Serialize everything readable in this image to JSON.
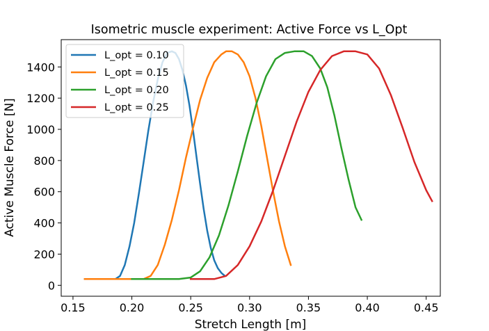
{
  "chart_data": {
    "type": "line",
    "title": "Isometric muscle experiment: Active Force vs L_Opt",
    "xlabel": "Stretch Length [m]",
    "ylabel": "Active Muscle Force [N]",
    "xlim": [
      0.14,
      0.462
    ],
    "ylim": [
      -70,
      1575
    ],
    "xticks": [
      0.15,
      0.2,
      0.25,
      0.3,
      0.35,
      0.4,
      0.45
    ],
    "xtick_labels": [
      "0.15",
      "0.20",
      "0.25",
      "0.30",
      "0.35",
      "0.40",
      "0.45"
    ],
    "yticks": [
      0,
      200,
      400,
      600,
      800,
      1000,
      1200,
      1400
    ],
    "ytick_labels": [
      "0",
      "200",
      "400",
      "600",
      "800",
      "1000",
      "1200",
      "1400"
    ],
    "grid": false,
    "legend_position": "upper-left",
    "series": [
      {
        "name": "L_opt = 0.10",
        "color": "#1f77b4",
        "x": [
          0.16,
          0.17,
          0.18,
          0.186,
          0.19,
          0.194,
          0.198,
          0.202,
          0.206,
          0.21,
          0.214,
          0.218,
          0.222,
          0.226,
          0.23,
          0.234,
          0.237,
          0.24,
          0.243,
          0.246,
          0.249,
          0.252,
          0.255,
          0.258,
          0.261,
          0.264,
          0.267,
          0.27,
          0.273,
          0.276,
          0.279
        ],
        "y": [
          40,
          40,
          40,
          40,
          60,
          130,
          250,
          400,
          590,
          790,
          990,
          1170,
          1320,
          1430,
          1490,
          1500,
          1490,
          1450,
          1380,
          1280,
          1150,
          990,
          820,
          650,
          490,
          350,
          240,
          160,
          110,
          80,
          60
        ]
      },
      {
        "name": "L_opt = 0.15",
        "color": "#ff7f0e",
        "x": [
          0.16,
          0.18,
          0.2,
          0.21,
          0.216,
          0.222,
          0.228,
          0.234,
          0.24,
          0.246,
          0.252,
          0.258,
          0.264,
          0.27,
          0.276,
          0.28,
          0.285,
          0.29,
          0.295,
          0.3,
          0.305,
          0.31,
          0.315,
          0.32,
          0.325,
          0.33,
          0.335
        ],
        "y": [
          40,
          40,
          40,
          40,
          60,
          130,
          260,
          420,
          610,
          820,
          1010,
          1190,
          1330,
          1430,
          1480,
          1500,
          1500,
          1480,
          1430,
          1340,
          1200,
          1020,
          810,
          600,
          410,
          250,
          130
        ]
      },
      {
        "name": "L_opt = 0.20",
        "color": "#2ca02c",
        "x": [
          0.2,
          0.22,
          0.24,
          0.25,
          0.258,
          0.266,
          0.274,
          0.282,
          0.29,
          0.298,
          0.306,
          0.314,
          0.322,
          0.33,
          0.338,
          0.346,
          0.353,
          0.36,
          0.366,
          0.372,
          0.378,
          0.384,
          0.39,
          0.395
        ],
        "y": [
          40,
          40,
          40,
          50,
          90,
          180,
          320,
          510,
          730,
          960,
          1170,
          1340,
          1450,
          1490,
          1500,
          1500,
          1470,
          1390,
          1270,
          1090,
          880,
          680,
          500,
          420
        ]
      },
      {
        "name": "L_opt = 0.25",
        "color": "#d62728",
        "x": [
          0.25,
          0.27,
          0.28,
          0.29,
          0.3,
          0.31,
          0.32,
          0.33,
          0.34,
          0.35,
          0.36,
          0.37,
          0.38,
          0.385,
          0.39,
          0.4,
          0.41,
          0.42,
          0.43,
          0.44,
          0.45,
          0.455
        ],
        "y": [
          40,
          40,
          60,
          130,
          250,
          410,
          610,
          830,
          1050,
          1240,
          1380,
          1470,
          1500,
          1500,
          1500,
          1480,
          1390,
          1220,
          1010,
          790,
          610,
          540
        ]
      }
    ]
  }
}
